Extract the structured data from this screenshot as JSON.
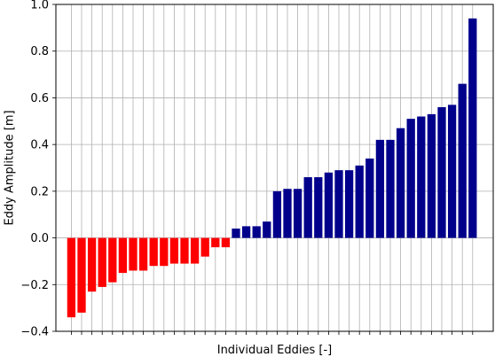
{
  "chart_data": {
    "type": "bar",
    "xlabel": "Individual Eddies [-]",
    "ylabel": "Eddy Amplitude [m]",
    "ylim": [
      -0.4,
      1.0
    ],
    "yticks": [
      "−0.4",
      "−0.2",
      "0.0",
      "0.2",
      "0.4",
      "0.6",
      "0.8",
      "1.0"
    ],
    "ytick_values": [
      -0.4,
      -0.2,
      0.0,
      0.2,
      0.4,
      0.6,
      0.8,
      1.0
    ],
    "grid": true,
    "negative_color": "#ff0000",
    "positive_color": "#00008b",
    "values": [
      -0.34,
      -0.32,
      -0.23,
      -0.21,
      -0.19,
      -0.15,
      -0.14,
      -0.14,
      -0.12,
      -0.12,
      -0.11,
      -0.11,
      -0.11,
      -0.08,
      -0.04,
      -0.04,
      0.04,
      0.05,
      0.05,
      0.07,
      0.2,
      0.21,
      0.21,
      0.26,
      0.26,
      0.28,
      0.29,
      0.29,
      0.31,
      0.34,
      0.42,
      0.42,
      0.47,
      0.51,
      0.52,
      0.53,
      0.56,
      0.57,
      0.66,
      0.94
    ]
  }
}
